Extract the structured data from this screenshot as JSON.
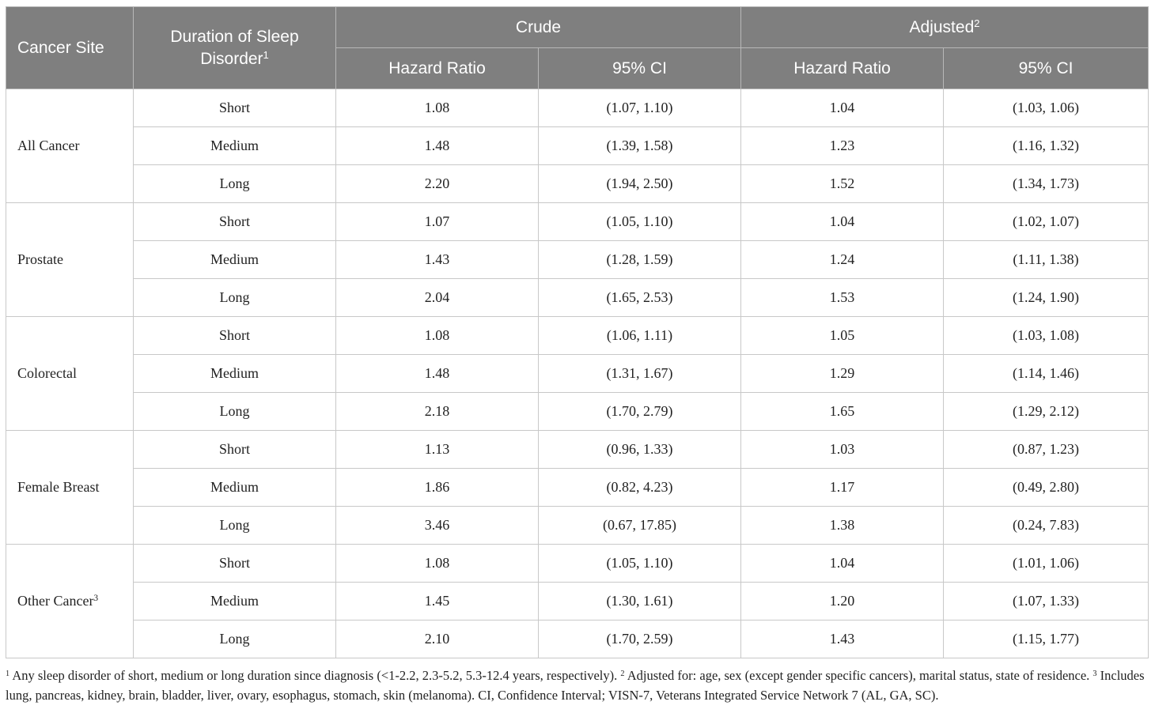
{
  "table": {
    "header": {
      "cancer_site": "Cancer Site",
      "duration": "Duration of Sleep Disorder",
      "duration_sup": "1",
      "crude": "Crude",
      "adjusted": "Adjusted",
      "adjusted_sup": "2",
      "hr_crude": "Hazard Ratio",
      "ci_crude": "95% CI",
      "hr_adj": "Hazard Ratio",
      "ci_adj": "95% CI"
    },
    "groups": [
      {
        "site": "All Cancer",
        "site_sup": "",
        "rows": [
          {
            "duration": "Short",
            "hr_crude": "1.08",
            "ci_crude": "(1.07, 1.10)",
            "hr_adj": "1.04",
            "ci_adj": "(1.03, 1.06)"
          },
          {
            "duration": "Medium",
            "hr_crude": "1.48",
            "ci_crude": "(1.39, 1.58)",
            "hr_adj": "1.23",
            "ci_adj": "(1.16, 1.32)"
          },
          {
            "duration": "Long",
            "hr_crude": "2.20",
            "ci_crude": "(1.94, 2.50)",
            "hr_adj": "1.52",
            "ci_adj": "(1.34, 1.73)"
          }
        ]
      },
      {
        "site": "Prostate",
        "site_sup": "",
        "rows": [
          {
            "duration": "Short",
            "hr_crude": "1.07",
            "ci_crude": "(1.05, 1.10)",
            "hr_adj": "1.04",
            "ci_adj": "(1.02, 1.07)"
          },
          {
            "duration": "Medium",
            "hr_crude": "1.43",
            "ci_crude": "(1.28, 1.59)",
            "hr_adj": "1.24",
            "ci_adj": "(1.11, 1.38)"
          },
          {
            "duration": "Long",
            "hr_crude": "2.04",
            "ci_crude": "(1.65, 2.53)",
            "hr_adj": "1.53",
            "ci_adj": "(1.24, 1.90)"
          }
        ]
      },
      {
        "site": "Colorectal",
        "site_sup": "",
        "rows": [
          {
            "duration": "Short",
            "hr_crude": "1.08",
            "ci_crude": "(1.06, 1.11)",
            "hr_adj": "1.05",
            "ci_adj": "(1.03, 1.08)"
          },
          {
            "duration": "Medium",
            "hr_crude": "1.48",
            "ci_crude": "(1.31, 1.67)",
            "hr_adj": "1.29",
            "ci_adj": "(1.14, 1.46)"
          },
          {
            "duration": "Long",
            "hr_crude": "2.18",
            "ci_crude": "(1.70, 2.79)",
            "hr_adj": "1.65",
            "ci_adj": "(1.29, 2.12)"
          }
        ]
      },
      {
        "site": "Female Breast",
        "site_sup": "",
        "rows": [
          {
            "duration": "Short",
            "hr_crude": "1.13",
            "ci_crude": "(0.96, 1.33)",
            "hr_adj": "1.03",
            "ci_adj": "(0.87, 1.23)"
          },
          {
            "duration": "Medium",
            "hr_crude": "1.86",
            "ci_crude": "(0.82, 4.23)",
            "hr_adj": "1.17",
            "ci_adj": "(0.49, 2.80)"
          },
          {
            "duration": "Long",
            "hr_crude": "3.46",
            "ci_crude": "(0.67, 17.85)",
            "hr_adj": "1.38",
            "ci_adj": "(0.24, 7.83)"
          }
        ]
      },
      {
        "site": "Other Cancer",
        "site_sup": "3",
        "rows": [
          {
            "duration": "Short",
            "hr_crude": "1.08",
            "ci_crude": "(1.05, 1.10)",
            "hr_adj": "1.04",
            "ci_adj": "(1.01, 1.06)"
          },
          {
            "duration": "Medium",
            "hr_crude": "1.45",
            "ci_crude": "(1.30, 1.61)",
            "hr_adj": "1.20",
            "ci_adj": "(1.07, 1.33)"
          },
          {
            "duration": "Long",
            "hr_crude": "2.10",
            "ci_crude": "(1.70, 2.59)",
            "hr_adj": "1.43",
            "ci_adj": "(1.15, 1.77)"
          }
        ]
      }
    ]
  },
  "footnotes": [
    {
      "marker": "1",
      "text": " Any sleep disorder of short, medium or long duration since diagnosis (<1-2.2, 2.3-5.2, 5.3-12.4 years, respectively). "
    },
    {
      "marker": "2",
      "text": " Adjusted for: age, sex (except gender specific cancers), marital status, state of residence. "
    },
    {
      "marker": "3",
      "text": " Includes lung, pancreas, kidney, brain, bladder, liver, ovary, esophagus, stomach, skin (melanoma). CI, Confidence Interval; VISN-7, Veterans Integrated Service Network 7 (AL, GA, SC)."
    }
  ]
}
